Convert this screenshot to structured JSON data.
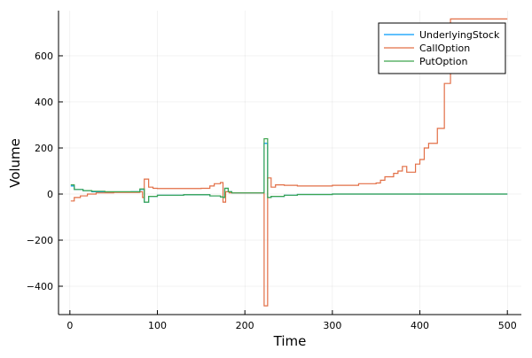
{
  "chart_data": {
    "type": "line",
    "title": "",
    "xlabel": "Time",
    "ylabel": "Volume",
    "xlim": [
      -13,
      516
    ],
    "ylim": [
      -523,
      796
    ],
    "xticks": [
      0,
      100,
      200,
      300,
      400,
      500
    ],
    "yticks": [
      -400,
      -200,
      0,
      200,
      400,
      600
    ],
    "grid": true,
    "legend_position": "top-right",
    "step": true,
    "series": [
      {
        "name": "UnderlyingStock",
        "color": "#009af9",
        "points": [
          [
            1,
            35
          ],
          [
            5,
            20
          ],
          [
            15,
            15
          ],
          [
            25,
            10
          ],
          [
            40,
            9
          ],
          [
            70,
            10
          ],
          [
            80,
            20
          ],
          [
            85,
            -35
          ],
          [
            90,
            -10
          ],
          [
            100,
            -5
          ],
          [
            130,
            -3
          ],
          [
            160,
            -8
          ],
          [
            172,
            -12
          ],
          [
            175,
            -15
          ],
          [
            177,
            25
          ],
          [
            181,
            10
          ],
          [
            185,
            5
          ],
          [
            220,
            5
          ],
          [
            222,
            220
          ],
          [
            226,
            -15
          ],
          [
            230,
            -10
          ],
          [
            245,
            -5
          ],
          [
            260,
            -2
          ],
          [
            300,
            0
          ],
          [
            500,
            0
          ]
        ]
      },
      {
        "name": "CallOption",
        "color": "#e26f46",
        "points": [
          [
            1,
            -30
          ],
          [
            5,
            -15
          ],
          [
            12,
            -8
          ],
          [
            20,
            0
          ],
          [
            30,
            5
          ],
          [
            50,
            7
          ],
          [
            80,
            10
          ],
          [
            83,
            -15
          ],
          [
            85,
            65
          ],
          [
            90,
            30
          ],
          [
            95,
            25
          ],
          [
            100,
            24
          ],
          [
            150,
            25
          ],
          [
            160,
            35
          ],
          [
            165,
            45
          ],
          [
            172,
            50
          ],
          [
            175,
            -35
          ],
          [
            178,
            10
          ],
          [
            182,
            5
          ],
          [
            220,
            5
          ],
          [
            222,
            -485
          ],
          [
            226,
            70
          ],
          [
            230,
            30
          ],
          [
            235,
            40
          ],
          [
            245,
            38
          ],
          [
            260,
            35
          ],
          [
            300,
            38
          ],
          [
            330,
            45
          ],
          [
            350,
            48
          ],
          [
            355,
            60
          ],
          [
            360,
            75
          ],
          [
            370,
            90
          ],
          [
            375,
            100
          ],
          [
            380,
            120
          ],
          [
            385,
            95
          ],
          [
            390,
            95
          ],
          [
            395,
            130
          ],
          [
            400,
            150
          ],
          [
            405,
            200
          ],
          [
            410,
            220
          ],
          [
            420,
            285
          ],
          [
            428,
            480
          ],
          [
            435,
            760
          ],
          [
            500,
            760
          ]
        ]
      },
      {
        "name": "PutOption",
        "color": "#3da44d",
        "points": [
          [
            1,
            40
          ],
          [
            5,
            20
          ],
          [
            15,
            15
          ],
          [
            25,
            12
          ],
          [
            40,
            10
          ],
          [
            70,
            10
          ],
          [
            80,
            22
          ],
          [
            85,
            -35
          ],
          [
            90,
            -10
          ],
          [
            100,
            -5
          ],
          [
            130,
            -3
          ],
          [
            160,
            -8
          ],
          [
            172,
            -12
          ],
          [
            175,
            -15
          ],
          [
            177,
            25
          ],
          [
            181,
            10
          ],
          [
            185,
            5
          ],
          [
            220,
            5
          ],
          [
            222,
            240
          ],
          [
            226,
            -15
          ],
          [
            230,
            -10
          ],
          [
            245,
            -5
          ],
          [
            260,
            -2
          ],
          [
            300,
            0
          ],
          [
            500,
            0
          ]
        ]
      }
    ]
  }
}
